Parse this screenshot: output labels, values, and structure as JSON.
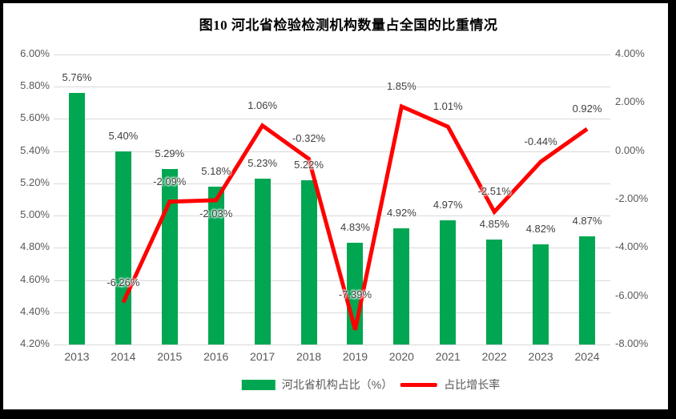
{
  "title": "图10  河北省检验检测机构数量占全国的比重情况",
  "colors": {
    "bar_green": "#00A651",
    "line_red": "#FF0000",
    "grid": "#D9D9D9",
    "tick_text": "#595959",
    "data_label_text": "#404040",
    "title_text": "#000000",
    "frame": "#000000"
  },
  "chart_data": {
    "type": "combo-bar-line",
    "title": "图10  河北省检验检测机构数量占全国的比重情况",
    "categories": [
      "2013",
      "2014",
      "2015",
      "2016",
      "2017",
      "2018",
      "2019",
      "2020",
      "2021",
      "2022",
      "2023",
      "2024"
    ],
    "series": [
      {
        "name": "河北省机构占比（%）",
        "type": "bar",
        "axis": "left",
        "color": "#00A651",
        "values": [
          5.76,
          5.4,
          5.29,
          5.18,
          5.23,
          5.22,
          4.83,
          4.92,
          4.97,
          4.85,
          4.82,
          4.87
        ],
        "labels": [
          "5.76%",
          "5.40%",
          "5.29%",
          "5.18%",
          "5.23%",
          "5.22%",
          "4.83%",
          "4.92%",
          "4.97%",
          "4.85%",
          "4.82%",
          "4.87%"
        ]
      },
      {
        "name": "占比增长率",
        "type": "line",
        "axis": "right",
        "color": "#FF0000",
        "values": [
          null,
          -6.26,
          -2.09,
          -2.03,
          1.06,
          -0.32,
          -7.39,
          1.85,
          1.01,
          -2.51,
          -0.44,
          0.92
        ],
        "labels": [
          null,
          "-6.26%",
          "-2.09%",
          "-2.03%",
          "1.06%",
          "-0.32%",
          "-7.39%",
          "1.85%",
          "1.01%",
          "-2.51%",
          "-0.44%",
          "0.92%"
        ],
        "label_placement": [
          null,
          "above",
          "above",
          "below",
          "above",
          "above",
          "far-above",
          "above",
          "above",
          "above",
          "above",
          "above"
        ]
      }
    ],
    "left_axis": {
      "min": 4.2,
      "max": 6.0,
      "step": 0.2,
      "ticks": [
        "6.00%",
        "5.80%",
        "5.60%",
        "5.40%",
        "5.20%",
        "5.00%",
        "4.80%",
        "4.60%",
        "4.40%",
        "4.20%"
      ]
    },
    "right_axis": {
      "min": -8.0,
      "max": 4.0,
      "step": 2.0,
      "ticks": [
        "4.00%",
        "2.00%",
        "0.00%",
        "-2.00%",
        "-4.00%",
        "-6.00%",
        "-8.00%"
      ]
    },
    "grid": true,
    "legend_position": "bottom",
    "legend": [
      {
        "label": "河北省机构占比（%）",
        "swatch": "bar",
        "color": "#00A651"
      },
      {
        "label": "占比增长率",
        "swatch": "line",
        "color": "#FF0000"
      }
    ]
  }
}
